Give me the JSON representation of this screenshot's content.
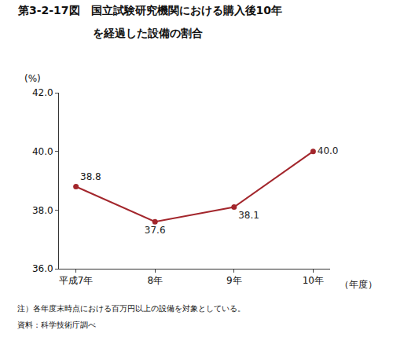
{
  "chart_data": {
    "type": "line",
    "title": "第3-2-17図　国立試験研究機関における購入後10年\nを経過した設備の割合",
    "y_label": "(%)",
    "x_label": "（年度）",
    "categories": [
      "平成7年",
      "8年",
      "9年",
      "10年"
    ],
    "values": [
      38.8,
      37.6,
      38.1,
      40.0
    ],
    "value_labels": [
      "38.8",
      "37.6",
      "38.1",
      "40.0"
    ],
    "data_labels": true,
    "color": "#a3262c",
    "marker": "circle",
    "line_style": "solid",
    "ylim": [
      36,
      42
    ],
    "yticks": [
      {
        "value": 36,
        "label": "36.0"
      },
      {
        "value": 38,
        "label": "38.0"
      },
      {
        "value": 40,
        "label": "40.0"
      },
      {
        "value": 42,
        "label": "42.0"
      }
    ],
    "grid": false,
    "annotations": [
      "注）各年度末時点における百万円以上の設備を対象としている。",
      "資料：科学技術庁調べ"
    ]
  }
}
